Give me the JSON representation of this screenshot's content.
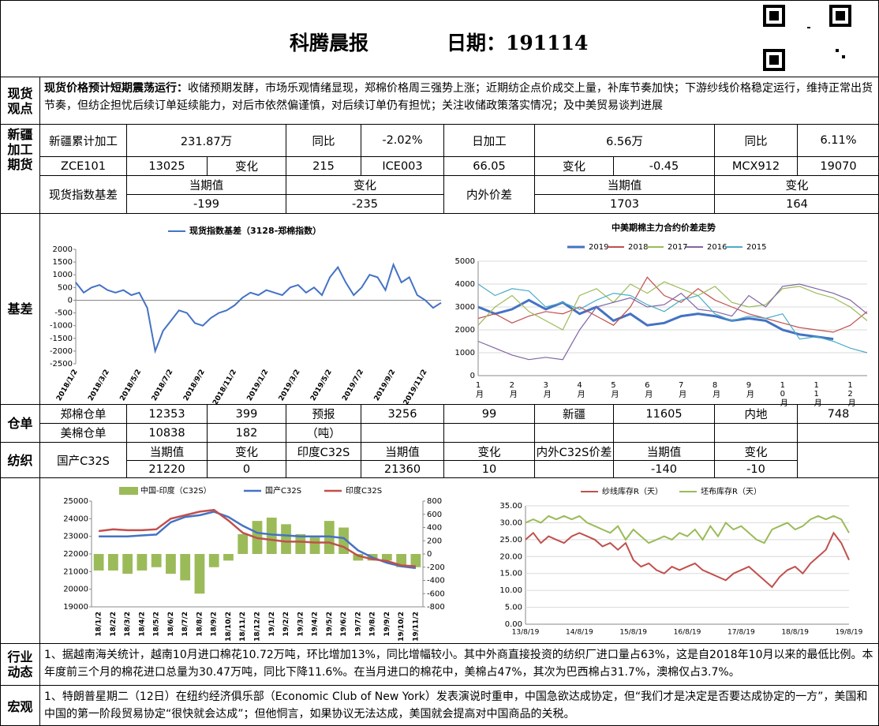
{
  "header": {
    "title": "科腾晨报",
    "date": "日期：191114"
  },
  "spot": {
    "label": "现货观点",
    "lead": "现货价格预计短期震荡运行：",
    "text": "收储预期发酵，市场乐观情绪显现，郑棉价格周三强势上涨；近期纺企点价成交上量，补库节奏加快；下游纱线价格稳定运行，维持正常出货节奏，但纺企担忧后续订单延续能力，对后市依然偏谨慎，对后续订单仍有担忧；关注收储政策落实情况；及中美贸易谈判进展"
  },
  "futures": {
    "label": "新疆加工期货",
    "row1": [
      "新疆累计加工",
      "231.87万",
      "同比",
      "-2.02%",
      "日加工",
      "6.56万",
      "同比",
      "6.11%"
    ],
    "row2": [
      "ZCE101",
      "13025",
      "变化",
      "215",
      "ICE003",
      "66.05",
      "变化",
      "-0.45",
      "MCX912",
      "19070"
    ],
    "basis": {
      "label": "现货指数基差",
      "head": [
        "当期值",
        "变化"
      ],
      "values": [
        "-199",
        "-235"
      ]
    },
    "spread": {
      "label": "内外价差",
      "head": [
        "当期值",
        "变化"
      ],
      "values": [
        "1703",
        "164"
      ]
    }
  },
  "basis_label": "基差",
  "warehouse": {
    "label": "仓单",
    "row1": [
      "郑棉仓单",
      "12353",
      "399",
      "预报",
      "3256",
      "99",
      "新疆",
      "11605",
      "内地",
      "748"
    ],
    "row2": [
      "美棉仓单",
      "10838",
      "182",
      "（吨）"
    ]
  },
  "textile": {
    "label": "纺织",
    "row1": [
      "国产C32S",
      "当期值",
      "变化",
      "印度C32S",
      "当期值",
      "变化",
      "内外C32S价差",
      "当期值",
      "变化"
    ],
    "row2": [
      "21220",
      "0",
      "21360",
      "10",
      "-140",
      "-10"
    ]
  },
  "industry": {
    "label": "行业动态",
    "text": "1、据越南海关统计，越南10月进口棉花10.72万吨，环比增加13%，同比增幅较小。其中外商直接投资的纺织厂进口量占63%，这是自2018年10月以来的最低比例。本年度前三个月的棉花进口总量为30.47万吨，同比下降11.6%。在当月进口的棉花中，美棉占47%，其次为巴西棉占31.7%，澳棉仅占3.7%。"
  },
  "macro": {
    "label": "宏观",
    "text": "1、特朗普星期二（12日）在纽约经济俱乐部（Economic Club of New York）发表演说时重申，中国急欲达成协定，但“我们才是决定是否要达成协定的一方”，美国和中国的第一阶段贸易协定“很快就会达成”；但他恫言，如果协议无法达成，美国就会提高对中国商品的关税。"
  },
  "chart_data": [
    {
      "type": "line",
      "categories": [
        "2018/1/2",
        null,
        null,
        null,
        "2018/3/2",
        null,
        null,
        null,
        "2018/5/2",
        null,
        null,
        null,
        "2018/7/2",
        null,
        null,
        null,
        "2018/9/2",
        null,
        null,
        null,
        "2018/11/2",
        null,
        null,
        null,
        "2019/1/2",
        null,
        null,
        null,
        "2019/3/2",
        null,
        null,
        null,
        "2019/5/2",
        null,
        null,
        null,
        "2019/7/2",
        null,
        null,
        null,
        "2019/9/2",
        null,
        null,
        null,
        "2019/11/2",
        null,
        null
      ],
      "series": [
        {
          "name": "现货指数基差（3128-郑棉指数）",
          "color": "#4472c4",
          "values": [
            700,
            300,
            500,
            600,
            400,
            300,
            400,
            200,
            300,
            -300,
            -2000,
            -1200,
            -800,
            -400,
            -500,
            -900,
            -1000,
            -700,
            -500,
            -400,
            -200,
            100,
            300,
            200,
            400,
            300,
            200,
            500,
            600,
            300,
            500,
            200,
            900,
            1300,
            700,
            200,
            500,
            1000,
            900,
            400,
            1400,
            700,
            900,
            200,
            0,
            -300,
            -100
          ]
        }
      ],
      "ylim": [
        -2500,
        2000
      ],
      "yticks": [
        -2500,
        -2000,
        -1500,
        -1000,
        -500,
        0,
        500,
        1000,
        1500,
        2000
      ],
      "grid": false
    },
    {
      "type": "line",
      "title": "中美期棉主力合约价差走势",
      "categories": [
        "1月",
        null,
        "2月",
        null,
        "3月",
        null,
        "4月",
        null,
        "5月",
        null,
        "6月",
        null,
        "7月",
        null,
        "8月",
        null,
        "9月",
        null,
        "10月",
        null,
        "11月",
        null,
        "12月",
        null
      ],
      "series": [
        {
          "name": "2019",
          "color": "#4472c4",
          "values": [
            3000,
            2700,
            2900,
            3300,
            2900,
            3200,
            2700,
            3000,
            2400,
            2700,
            2200,
            2300,
            2600,
            2700,
            2600,
            2400,
            2500,
            2400,
            2000,
            1800,
            1700,
            1600,
            null,
            null
          ]
        },
        {
          "name": "2018",
          "color": "#c0504d",
          "values": [
            2500,
            2700,
            2300,
            2600,
            2800,
            2700,
            3000,
            2600,
            2200,
            3000,
            4300,
            3500,
            3200,
            3800,
            3300,
            3000,
            2700,
            2500,
            2300,
            2100,
            2000,
            1900,
            2200,
            2800
          ]
        },
        {
          "name": "2017",
          "color": "#9bbb59",
          "values": [
            2200,
            3000,
            3500,
            2800,
            2400,
            2000,
            3500,
            3800,
            3200,
            4000,
            3600,
            4100,
            3800,
            3500,
            3900,
            3200,
            3000,
            3100,
            3800,
            3900,
            3600,
            3400,
            3000,
            2400
          ]
        },
        {
          "name": "2016",
          "color": "#8064a2",
          "values": [
            1500,
            1200,
            900,
            700,
            800,
            700,
            2000,
            3000,
            3200,
            3400,
            3000,
            3100,
            3600,
            2900,
            2800,
            2600,
            3500,
            3000,
            3900,
            4000,
            3800,
            3600,
            3300,
            2700
          ]
        },
        {
          "name": "2015",
          "color": "#4bacc6",
          "values": [
            4000,
            3500,
            3800,
            3700,
            3000,
            3200,
            2900,
            3300,
            3600,
            3500,
            3100,
            2800,
            3300,
            3500,
            2700,
            2400,
            2600,
            2500,
            2700,
            1600,
            1700,
            1500,
            1200,
            1000
          ]
        }
      ],
      "ylim": [
        0,
        5000
      ],
      "yticks": [
        0,
        1000,
        2000,
        3000,
        4000,
        5000
      ],
      "grid": true
    },
    {
      "type": "combo",
      "categories": [
        "18/1/2",
        "18/2/2",
        "18/3/2",
        "18/4/2",
        "18/5/2",
        "18/6/2",
        "18/7/2",
        "18/8/2",
        "18/9/2",
        "18/10/2",
        "18/11/2",
        "18/12/2",
        "19/1/2",
        "19/2/2",
        "19/3/2",
        "19/4/2",
        "19/5/2",
        "19/6/2",
        "19/7/2",
        "19/8/2",
        "19/9/2",
        "19/10/2",
        "19/11/2"
      ],
      "series": [
        {
          "name": "中国-印度（C32S）",
          "type": "bar",
          "axis": "y2",
          "color": "#9bbb59",
          "values": [
            -250,
            -250,
            -300,
            -250,
            -200,
            -300,
            -400,
            -600,
            -200,
            -100,
            300,
            500,
            550,
            450,
            300,
            250,
            500,
            400,
            -100,
            -100,
            -100,
            -200,
            -200
          ]
        },
        {
          "name": "国产C32S",
          "type": "line",
          "color": "#4472c4",
          "values": [
            23000,
            23000,
            23000,
            23050,
            23100,
            23800,
            24100,
            24200,
            24400,
            24100,
            23600,
            23200,
            23100,
            23050,
            23000,
            23000,
            23000,
            22900,
            22200,
            21800,
            21500,
            21300,
            21200
          ]
        },
        {
          "name": "印度C32S",
          "type": "line",
          "color": "#c0504d",
          "values": [
            23300,
            23400,
            23350,
            23350,
            23400,
            24000,
            24200,
            24400,
            24500,
            23900,
            23200,
            22900,
            22800,
            22700,
            22700,
            22650,
            22650,
            22400,
            21900,
            21700,
            21600,
            21350,
            21300
          ]
        }
      ],
      "ylim": [
        19000,
        25000
      ],
      "yticks": [
        19000,
        20000,
        21000,
        22000,
        23000,
        24000,
        25000
      ],
      "y2lim": [
        -800,
        800
      ],
      "y2ticks": [
        -800,
        -600,
        -400,
        -200,
        0,
        200,
        400,
        600,
        800
      ],
      "grid": false
    },
    {
      "type": "line",
      "categories": [
        "13/8/19",
        null,
        null,
        null,
        null,
        null,
        null,
        "14/8/19",
        null,
        null,
        null,
        null,
        null,
        null,
        "15/8/19",
        null,
        null,
        null,
        null,
        null,
        null,
        "16/8/19",
        null,
        null,
        null,
        null,
        null,
        null,
        "17/8/19",
        null,
        null,
        null,
        null,
        null,
        null,
        "18/8/19",
        null,
        null,
        null,
        null,
        null,
        null,
        "19/8/19"
      ],
      "series": [
        {
          "name": "纱线库存R（天）",
          "color": "#c0504d",
          "values": [
            25,
            27,
            24,
            26,
            25,
            24,
            26,
            27,
            26,
            25,
            23,
            24,
            22,
            24,
            19,
            17,
            18,
            16,
            15,
            17,
            16,
            17,
            18,
            16,
            15,
            14,
            13,
            15,
            16,
            17,
            15,
            13,
            11,
            14,
            16,
            17,
            15,
            18,
            20,
            22,
            27,
            24,
            19
          ]
        },
        {
          "name": "坯布库存R（天）",
          "color": "#9bbb59",
          "values": [
            30,
            31,
            30,
            32,
            31,
            32,
            31,
            32,
            30,
            29,
            28,
            27,
            29,
            25,
            28,
            26,
            24,
            25,
            26,
            25,
            27,
            26,
            28,
            25,
            29,
            26,
            30,
            28,
            29,
            27,
            25,
            24,
            28,
            29,
            30,
            28,
            29,
            31,
            32,
            31,
            32,
            31,
            27
          ]
        }
      ],
      "ylim": [
        0,
        35
      ],
      "yticks": [
        {
          "value": 0,
          "label": "0.00"
        },
        {
          "value": 5,
          "label": "5.00"
        },
        {
          "value": 10,
          "label": "10.00"
        },
        {
          "value": 15,
          "label": "15.00"
        },
        {
          "value": 20,
          "label": "20.00"
        },
        {
          "value": 25,
          "label": "25.00"
        },
        {
          "value": 30,
          "label": "30.00"
        },
        {
          "value": 35,
          "label": "35.00"
        }
      ],
      "grid": true
    }
  ]
}
